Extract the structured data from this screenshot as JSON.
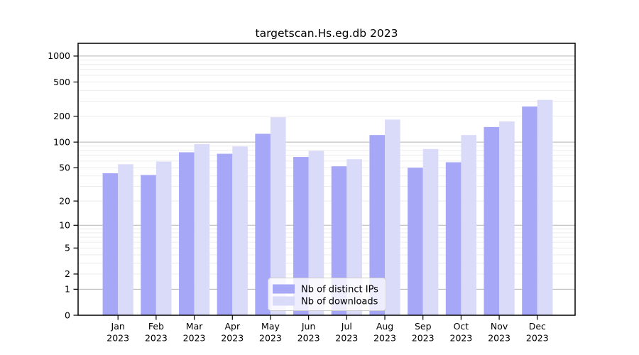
{
  "chart_data": {
    "type": "bar",
    "title": "targetscan.Hs.eg.db 2023",
    "categories": [
      "Jan",
      "Feb",
      "Mar",
      "Apr",
      "May",
      "Jun",
      "Jul",
      "Aug",
      "Sep",
      "Oct",
      "Nov",
      "Dec"
    ],
    "year_label": "2023",
    "series": [
      {
        "name": "Nb of distinct IPs",
        "color": "#a7a7f7",
        "values": [
          43,
          41,
          76,
          73,
          125,
          67,
          52,
          121,
          50,
          58,
          150,
          260
        ]
      },
      {
        "name": "Nb of downloads",
        "color": "#dadaf9",
        "values": [
          55,
          59,
          95,
          89,
          195,
          79,
          63,
          183,
          83,
          121,
          174,
          310
        ]
      }
    ],
    "yscale": "log1p",
    "ytick_values": [
      0,
      1,
      2,
      5,
      10,
      20,
      50,
      100,
      200,
      500,
      1000
    ],
    "ytick_labels": [
      "0",
      "1",
      "2",
      "5",
      "10",
      "20",
      "50",
      "100",
      "200",
      "500",
      "1000"
    ],
    "ylim": [
      0,
      1400
    ],
    "grid": "horizontal, log minor lines",
    "legend_position": "lower-center",
    "colors": {
      "axis": "#000000",
      "grid_major": "#b3b3b3",
      "grid_minor": "#eaeaea",
      "legend_border": "#cccccc",
      "legend_bg": "rgba(255,255,255,0.8)",
      "text": "#000000"
    }
  }
}
